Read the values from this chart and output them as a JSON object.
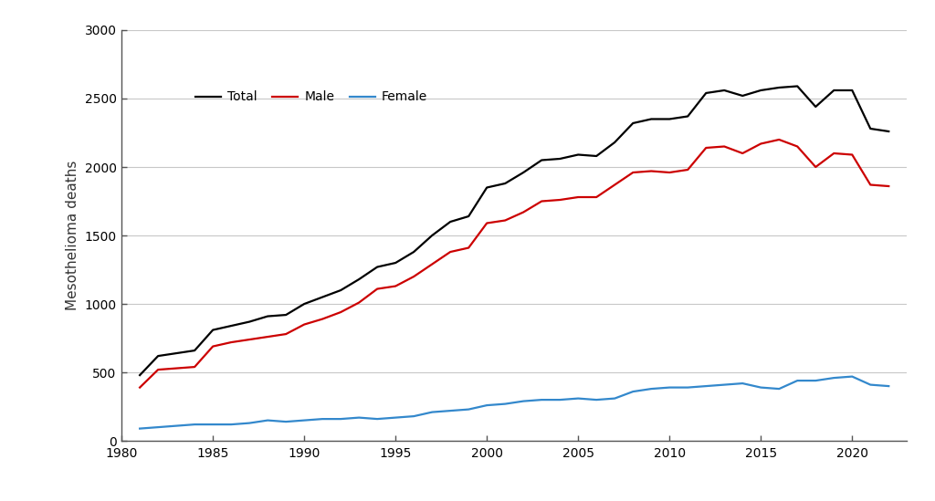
{
  "years": [
    1981,
    1982,
    1983,
    1984,
    1985,
    1986,
    1987,
    1988,
    1989,
    1990,
    1991,
    1992,
    1993,
    1994,
    1995,
    1996,
    1997,
    1998,
    1999,
    2000,
    2001,
    2002,
    2003,
    2004,
    2005,
    2006,
    2007,
    2008,
    2009,
    2010,
    2011,
    2012,
    2013,
    2014,
    2015,
    2016,
    2017,
    2018,
    2019,
    2020,
    2021,
    2022
  ],
  "total": [
    480,
    620,
    640,
    660,
    810,
    840,
    870,
    910,
    920,
    1000,
    1050,
    1100,
    1180,
    1270,
    1300,
    1380,
    1500,
    1600,
    1640,
    1850,
    1880,
    1960,
    2050,
    2060,
    2090,
    2080,
    2180,
    2320,
    2350,
    2350,
    2370,
    2540,
    2560,
    2520,
    2560,
    2580,
    2590,
    2440,
    2560,
    2560,
    2280,
    2260
  ],
  "male": [
    390,
    520,
    530,
    540,
    690,
    720,
    740,
    760,
    780,
    850,
    890,
    940,
    1010,
    1110,
    1130,
    1200,
    1290,
    1380,
    1410,
    1590,
    1610,
    1670,
    1750,
    1760,
    1780,
    1780,
    1870,
    1960,
    1970,
    1960,
    1980,
    2140,
    2150,
    2100,
    2170,
    2200,
    2150,
    2000,
    2100,
    2090,
    1870,
    1860
  ],
  "female": [
    90,
    100,
    110,
    120,
    120,
    120,
    130,
    150,
    140,
    150,
    160,
    160,
    170,
    160,
    170,
    180,
    210,
    220,
    230,
    260,
    270,
    290,
    300,
    300,
    310,
    300,
    310,
    360,
    380,
    390,
    390,
    400,
    410,
    420,
    390,
    380,
    440,
    440,
    460,
    470,
    410,
    400
  ],
  "total_color": "#000000",
  "male_color": "#cc0000",
  "female_color": "#3388cc",
  "ylabel": "Mesothelioma deaths",
  "ylim": [
    0,
    3000
  ],
  "xlim": [
    1980,
    2023
  ],
  "yticks": [
    0,
    500,
    1000,
    1500,
    2000,
    2500,
    3000
  ],
  "xticks": [
    1980,
    1985,
    1990,
    1995,
    2000,
    2005,
    2010,
    2015,
    2020
  ],
  "legend_labels": [
    "Total",
    "Male",
    "Female"
  ],
  "background_color": "#ffffff",
  "outer_background": "#f0f0f0",
  "grid_color": "#c8c8c8",
  "linewidth": 1.6,
  "spine_color": "#555555"
}
